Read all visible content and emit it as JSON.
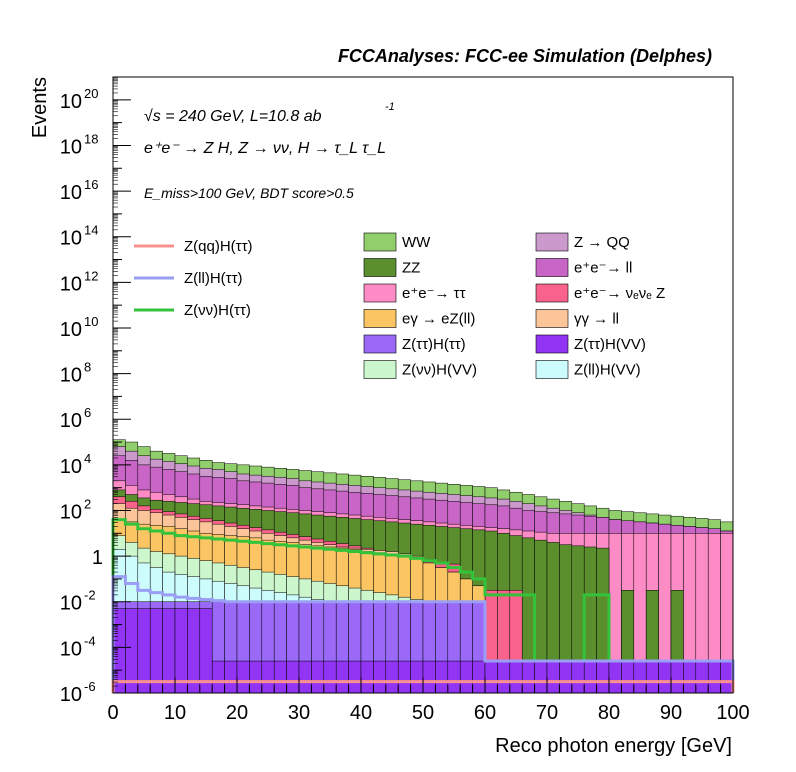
{
  "chart_data": {
    "type": "bar",
    "title": "FCCAnalyses: FCC-ee Simulation (Delphes)",
    "xlabel": "Reco photon energy [GeV]",
    "ylabel": "Events",
    "xlim": [
      0,
      100
    ],
    "ylim": [
      1e-06,
      1e+21
    ],
    "y_scale": "log",
    "bin_width": 2,
    "x_ticks": [
      "0",
      "10",
      "20",
      "30",
      "40",
      "50",
      "60",
      "70",
      "80",
      "90",
      "100"
    ],
    "y_ticks": [
      {
        "base": "10",
        "exp": "-6"
      },
      {
        "base": "10",
        "exp": "-4"
      },
      {
        "base": "10",
        "exp": "-2"
      },
      {
        "base": "1",
        "exp": ""
      },
      {
        "base": "10",
        "exp": "2"
      },
      {
        "base": "10",
        "exp": "4"
      },
      {
        "base": "10",
        "exp": "6"
      },
      {
        "base": "10",
        "exp": "8"
      },
      {
        "base": "10",
        "exp": "10"
      },
      {
        "base": "10",
        "exp": "12"
      },
      {
        "base": "10",
        "exp": "14"
      },
      {
        "base": "10",
        "exp": "16"
      },
      {
        "base": "10",
        "exp": "18"
      },
      {
        "base": "10",
        "exp": "20"
      }
    ],
    "annotations": {
      "energy": "√s = 240 GeV, L=10.8 ab",
      "energy_exp": "-1",
      "process": "e⁺e⁻ → Z H, Z → νν, H → τ_L τ_L",
      "selection": "E_miss>100 GeV, BDT score>0.5"
    },
    "legend_signal": [
      {
        "name": "Z(qq)H(ττ)",
        "color": "#f99090"
      },
      {
        "name": "Z(ll)H(ττ)",
        "color": "#9a9ef5"
      },
      {
        "name": "Z(νν)H(ττ)",
        "color": "#33c33b"
      }
    ],
    "legend_background": [
      {
        "name": "WW",
        "color": "#91ce6c"
      },
      {
        "name": "Z → QQ",
        "color": "#cc99cc"
      },
      {
        "name": "ZZ",
        "color": "#5b8f2e"
      },
      {
        "name": "e⁺e⁻→ ll",
        "color": "#c865c6"
      },
      {
        "name": "e⁺e⁻→ ττ",
        "color": "#fd8cc6"
      },
      {
        "name": "e⁺e⁻→ νₑνₑ Z",
        "color": "#f9638b"
      },
      {
        "name": "eγ → eZ(ll)",
        "color": "#fcc563"
      },
      {
        "name": "γγ → ll",
        "color": "#fcc599"
      },
      {
        "name": "Z(ττ)H(ττ)",
        "color": "#9a69f7"
      },
      {
        "name": "Z(ττ)H(VV)",
        "color": "#9234f4"
      },
      {
        "name": "Z(νν)H(VV)",
        "color": "#ccf7cc"
      },
      {
        "name": "Z(ll)H(VV)",
        "color": "#cdfcfc"
      }
    ],
    "stack_tops_log10": [
      {
        "name": "WW",
        "color": "#91ce6c",
        "values": [
          5.1,
          5.0,
          4.8,
          4.6,
          4.5,
          4.4,
          4.3,
          4.2,
          4.1,
          4.05,
          4.0,
          3.95,
          3.9,
          3.85,
          3.8,
          3.75,
          3.7,
          3.65,
          3.6,
          3.55,
          3.5,
          3.45,
          3.4,
          3.35,
          3.3,
          3.25,
          3.2,
          3.15,
          3.1,
          3.05,
          3.0,
          2.9,
          2.8,
          2.7,
          2.6,
          2.5,
          2.4,
          2.3,
          2.2,
          2.1,
          2.0,
          1.95,
          1.9,
          1.85,
          1.8,
          1.75,
          1.7,
          1.65,
          1.6,
          1.5
        ]
      },
      {
        "name": "Z → QQ",
        "color": "#cc99cc",
        "values": [
          4.8,
          4.6,
          4.4,
          4.25,
          4.15,
          4.05,
          3.95,
          3.85,
          3.8,
          3.7,
          3.6,
          3.55,
          3.5,
          3.45,
          3.4,
          3.3,
          3.25,
          3.2,
          3.15,
          3.1,
          3.05,
          3.0,
          2.95,
          2.9,
          2.85,
          2.8,
          2.75,
          2.7,
          2.65,
          2.6,
          2.55,
          2.5,
          2.4,
          2.3,
          2.2,
          2.1,
          2.0,
          1.9,
          1.8,
          1.7,
          1.6,
          1.55,
          1.5,
          1.45,
          1.4,
          1.35,
          1.3,
          1.25,
          1.2,
          1.1
        ]
      },
      {
        "name": "e⁺e⁻→ ll",
        "color": "#c865c6",
        "values": [
          4.4,
          4.2,
          4.0,
          3.9,
          3.8,
          3.7,
          3.6,
          3.5,
          3.45,
          3.4,
          3.3,
          3.25,
          3.2,
          3.15,
          3.1,
          3.0,
          2.95,
          2.9,
          2.85,
          2.8,
          2.75,
          2.7,
          2.65,
          2.6,
          2.55,
          2.5,
          2.45,
          2.4,
          2.35,
          2.3,
          2.25,
          2.2,
          2.1,
          2.0,
          1.95,
          1.9,
          1.85,
          1.8,
          1.75,
          1.7,
          1.6,
          1.55,
          1.5,
          1.45,
          1.4,
          1.35,
          1.3,
          1.25,
          1.2,
          1.1
        ]
      },
      {
        "name": "e⁺e⁻→ ττ",
        "color": "#fd8cc6",
        "values": [
          3.3,
          3.1,
          2.9,
          2.8,
          2.7,
          2.6,
          2.5,
          2.4,
          2.35,
          2.3,
          2.25,
          2.2,
          2.15,
          2.1,
          2.05,
          2.0,
          1.95,
          1.9,
          1.85,
          1.8,
          1.75,
          1.7,
          1.65,
          1.6,
          1.55,
          1.5,
          1.45,
          1.4,
          1.35,
          1.3,
          1.25,
          1.2,
          1.15,
          1.1,
          1.05,
          1.0,
          1.0,
          1.0,
          1.0,
          1.0,
          1.0,
          1.0,
          1.0,
          1.0,
          1.0,
          1.0,
          1.0,
          1.0,
          1.0,
          1.0
        ]
      },
      {
        "name": "ZZ",
        "color": "#5b8f2e",
        "values": [
          2.9,
          2.7,
          2.55,
          2.45,
          2.4,
          2.35,
          2.3,
          2.25,
          2.2,
          2.15,
          2.1,
          2.05,
          2.0,
          1.95,
          1.9,
          1.85,
          1.8,
          1.75,
          1.7,
          1.65,
          1.6,
          1.55,
          1.5,
          1.45,
          1.4,
          1.35,
          1.3,
          1.25,
          1.2,
          1.15,
          1.1,
          1.0,
          0.9,
          0.8,
          0.7,
          0.6,
          0.5,
          0.45,
          0.4,
          0.35,
          -4.6,
          -1.5,
          -4.6,
          -1.5,
          -4.6,
          -1.5,
          -4.6,
          -4.6,
          -4.6,
          -4.6
        ]
      },
      {
        "name": "e⁺e⁻→ νₑνₑ Z",
        "color": "#f9638b",
        "values": [
          2.6,
          2.4,
          2.2,
          2.05,
          1.95,
          1.85,
          1.75,
          1.65,
          1.55,
          1.45,
          1.35,
          1.25,
          1.15,
          1.05,
          0.95,
          0.85,
          0.75,
          0.65,
          0.55,
          0.45,
          0.35,
          0.25,
          0.15,
          0.05,
          -0.05,
          -0.15,
          -0.25,
          -0.35,
          -1.5,
          -1.5,
          -1.5,
          -1.5,
          -1.5,
          -4.6,
          -4.6,
          -4.6,
          -4.6,
          -4.6,
          -4.6,
          -4.6,
          -4.6,
          -4.6,
          -4.6,
          -4.6,
          -4.6,
          -4.6,
          -4.6,
          -4.6,
          -4.6,
          -4.6
        ]
      },
      {
        "name": "γγ → ll",
        "color": "#fcc599",
        "values": [
          2.3,
          2.1,
          2.0,
          1.9,
          1.8,
          1.7,
          1.6,
          1.5,
          1.4,
          1.3,
          1.2,
          1.1,
          1.0,
          0.9,
          0.8,
          0.7,
          0.6,
          0.5,
          0.4,
          0.35,
          0.3,
          0.25,
          0.2,
          0.1,
          0.0,
          -0.3,
          -0.5,
          -0.7,
          -1.0,
          -1.3,
          -4.6,
          -4.6,
          -4.6,
          -4.6,
          -4.6,
          -4.6,
          -4.6,
          -4.6,
          -4.6,
          -4.6,
          -4.6,
          -4.6,
          -4.6,
          -4.6,
          -4.6,
          -4.6,
          -4.6,
          -4.6,
          -4.6,
          -4.6
        ]
      },
      {
        "name": "eγ → eZ(ll)",
        "color": "#fcc563",
        "values": [
          1.6,
          1.5,
          1.4,
          1.35,
          1.3,
          1.2,
          1.1,
          1.0,
          0.95,
          0.9,
          0.85,
          0.8,
          0.7,
          0.65,
          0.6,
          0.5,
          0.45,
          0.4,
          0.35,
          0.3,
          0.2,
          0.15,
          0.1,
          0.0,
          -0.1,
          -0.3,
          -0.5,
          -0.7,
          -1.0,
          -1.3,
          -4.6,
          -4.6,
          -4.6,
          -4.6,
          -4.6,
          -4.6,
          -4.6,
          -4.6,
          -4.6,
          -4.6,
          -4.6,
          -4.6,
          -4.6,
          -4.6,
          -4.6,
          -4.6,
          -4.6,
          -4.6,
          -4.6,
          -4.6
        ]
      },
      {
        "name": "Z(νν)H(VV)",
        "color": "#ccf7cc",
        "values": [
          0.9,
          0.6,
          0.35,
          0.2,
          0.1,
          0.0,
          -0.1,
          -0.2,
          -0.3,
          -0.4,
          -0.5,
          -0.6,
          -0.7,
          -0.8,
          -0.9,
          -1.0,
          -1.1,
          -1.2,
          -1.3,
          -1.4,
          -1.5,
          -1.6,
          -1.7,
          -1.8,
          -1.9,
          -2.0,
          -2.1,
          -2.2,
          -2.3,
          -2.4,
          -4.6,
          -4.6,
          -4.6,
          -4.6,
          -4.6,
          -4.6,
          -4.6,
          -4.6,
          -4.6,
          -4.6,
          -4.6,
          -4.6,
          -4.6,
          -4.6,
          -4.6,
          -4.6,
          -4.6,
          -4.6,
          -4.6,
          -4.6
        ]
      },
      {
        "name": "Z(ll)H(VV)",
        "color": "#cdfcfc",
        "values": [
          0.3,
          0.0,
          -0.3,
          -0.5,
          -0.7,
          -0.8,
          -0.9,
          -1.0,
          -1.1,
          -1.2,
          -1.3,
          -1.4,
          -1.5,
          -1.6,
          -1.7,
          -1.8,
          -1.9,
          -2.0,
          -2.1,
          -2.2,
          -2.3,
          -2.4,
          -2.5,
          -2.6,
          -2.7,
          -2.8,
          -2.9,
          -3.0,
          -3.1,
          -3.2,
          -4.6,
          -4.6,
          -4.6,
          -4.6,
          -4.6,
          -4.6,
          -4.6,
          -4.6,
          -4.6,
          -4.6,
          -4.6,
          -4.6,
          -4.6,
          -4.6,
          -4.6,
          -4.6,
          -4.6,
          -4.6,
          -4.6,
          -4.6
        ]
      },
      {
        "name": "Z(ττ)H(ττ)",
        "color": "#9a69f7",
        "values": [
          -2.0,
          -2.0,
          -2.0,
          -2.0,
          -2.0,
          -2.0,
          -2.0,
          -2.0,
          -2.0,
          -2.0,
          -2.0,
          -2.0,
          -2.0,
          -2.0,
          -2.0,
          -2.0,
          -2.0,
          -2.0,
          -2.0,
          -2.0,
          -2.0,
          -2.0,
          -2.0,
          -2.0,
          -2.0,
          -2.0,
          -2.0,
          -2.0,
          -2.0,
          -2.0,
          -4.6,
          -4.6,
          -4.6,
          -4.6,
          -4.6,
          -4.6,
          -4.6,
          -4.6,
          -4.6,
          -4.6,
          -4.6,
          -4.6,
          -4.6,
          -4.6,
          -4.6,
          -4.6,
          -4.6,
          -4.6,
          -4.6,
          -4.6
        ]
      },
      {
        "name": "Z(ττ)H(VV)",
        "color": "#9234f4",
        "values": [
          -2.3,
          -2.3,
          -2.3,
          -2.3,
          -2.3,
          -2.3,
          -2.3,
          -2.3,
          -4.6,
          -4.6,
          -4.6,
          -4.6,
          -4.6,
          -4.6,
          -4.6,
          -4.6,
          -4.6,
          -4.6,
          -4.6,
          -4.6,
          -4.6,
          -4.6,
          -4.6,
          -4.6,
          -4.6,
          -4.6,
          -4.6,
          -4.6,
          -4.6,
          -4.6,
          -4.6,
          -4.6,
          -4.6,
          -4.6,
          -4.6,
          -4.6,
          -4.6,
          -4.6,
          -4.6,
          -4.6,
          -4.6,
          -4.6,
          -4.6,
          -4.6,
          -4.6,
          -4.6,
          -4.6,
          -4.6,
          -4.6,
          -4.6
        ]
      }
    ],
    "signal_log10": [
      {
        "name": "Z(νν)H(ττ)",
        "color": "#33c33b",
        "values": [
          1.6,
          1.4,
          1.2,
          1.1,
          1.0,
          0.9,
          0.85,
          0.8,
          0.75,
          0.7,
          0.65,
          0.6,
          0.55,
          0.5,
          0.45,
          0.4,
          0.35,
          0.3,
          0.25,
          0.2,
          0.15,
          0.1,
          0.05,
          0.0,
          -0.1,
          -0.2,
          -0.3,
          -0.5,
          -0.7,
          -1.0,
          -1.7,
          -1.7,
          -1.7,
          -1.7,
          -4.6,
          -4.6,
          -4.6,
          -4.6,
          -1.7,
          -1.7,
          -4.6,
          -4.6,
          -4.6,
          -4.6,
          -4.6,
          -4.6,
          -4.6,
          -4.6,
          -4.6,
          -4.6
        ]
      },
      {
        "name": "Z(ll)H(ττ)",
        "color": "#9a9ef5",
        "values": [
          -0.9,
          -1.2,
          -1.5,
          -1.6,
          -1.7,
          -1.8,
          -1.85,
          -1.9,
          -1.95,
          -2.0,
          -2.0,
          -2.0,
          -2.0,
          -2.0,
          -2.0,
          -2.0,
          -2.0,
          -2.0,
          -2.0,
          -2.0,
          -2.0,
          -2.0,
          -2.0,
          -2.0,
          -2.0,
          -2.0,
          -2.0,
          -2.0,
          -2.0,
          -2.0,
          -4.6,
          -4.6,
          -4.6,
          -4.6,
          -4.6,
          -4.6,
          -4.6,
          -4.6,
          -4.6,
          -4.6,
          -4.6,
          -4.6,
          -4.6,
          -4.6,
          -4.6,
          -4.6,
          -4.6,
          -4.6,
          -4.6,
          -4.6
        ]
      },
      {
        "name": "Z(qq)H(ττ)",
        "color": "#f99090",
        "values": [
          -5.5,
          -5.5,
          -5.5,
          -5.5,
          -5.5,
          -5.5,
          -5.5,
          -5.5,
          -5.5,
          -5.5,
          -5.5,
          -5.5,
          -5.5,
          -5.5,
          -5.5,
          -5.5,
          -5.5,
          -5.5,
          -5.5,
          -5.5,
          -5.5,
          -5.5,
          -5.5,
          -5.5,
          -5.5,
          -5.5,
          -5.5,
          -5.5,
          -5.5,
          -5.5,
          -5.5,
          -5.5,
          -5.5,
          -5.5,
          -5.5,
          -5.5,
          -5.5,
          -5.5,
          -5.5,
          -5.5,
          -5.5,
          -5.5,
          -5.5,
          -5.5,
          -5.5,
          -5.5,
          -5.5,
          -5.5,
          -5.5,
          -5.5
        ]
      }
    ]
  }
}
